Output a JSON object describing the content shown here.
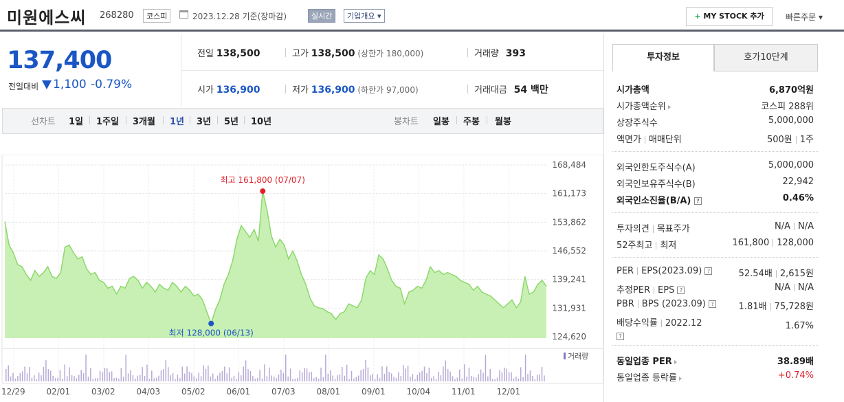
{
  "header": {
    "title": "미원에스씨",
    "code": "268280",
    "market": "코스피",
    "date": "2023.12.28  기준(장마감)",
    "realtime": "실시간",
    "overview": "기업개요 ▾",
    "mystock": "MY STOCK 추가",
    "fast_order": "빠른주문 ▾"
  },
  "price": {
    "current": "137,400",
    "diff_label": "전일대비",
    "diff_value": "1,100",
    "diff_pct": "-0.79%"
  },
  "quote": {
    "prev_label": "전일",
    "prev": "138,500",
    "high_label": "고가",
    "high": "138,500",
    "high_limit": "(상한가 180,000)",
    "volume_label": "거래량",
    "volume": "393",
    "open_label": "시가",
    "open": "136,900",
    "low_label": "저가",
    "low": "136,900",
    "low_limit": "(하한가 97,000)",
    "amount_label": "거래대금",
    "amount": "54 백만"
  },
  "tabs": {
    "line_label": "선차트",
    "periods": [
      "1일",
      "1주일",
      "3개월",
      "1년",
      "3년",
      "5년",
      "10년"
    ],
    "selected": "1년",
    "candle_label": "봉차트",
    "candles": [
      "일봉",
      "주봉",
      "월봉"
    ]
  },
  "chart_data": {
    "type": "area",
    "x_ticks": [
      "12/29",
      "02/01",
      "03/02",
      "04/03",
      "05/02",
      "06/01",
      "07/03",
      "08/01",
      "09/01",
      "10/04",
      "11/01",
      "12/01"
    ],
    "y_ticks": [
      "168,484",
      "161,173",
      "153,862",
      "146,552",
      "139,241",
      "131,931",
      "124,620"
    ],
    "ylim": [
      124620,
      168484
    ],
    "high_label": "최고 161,800 (07/07)",
    "low_label": "최저 128,000 (06/13)",
    "volume_label": "거래량",
    "series": [
      {
        "values": [
          154000,
          148000,
          146000,
          143000,
          142500,
          140500,
          139000,
          141500,
          140000,
          141000,
          142500,
          140000,
          139500,
          141000,
          147500,
          148000,
          146000,
          144500,
          145000,
          142000,
          140500,
          141000,
          139000,
          138500,
          137000,
          137500,
          135500,
          137500,
          137000,
          139500,
          140000,
          139000,
          137000,
          138500,
          137500,
          136000,
          138000,
          137000,
          136500,
          138500,
          137500,
          136000,
          137500,
          136500,
          135000,
          135500,
          134000,
          131000,
          128000,
          131500,
          134000,
          138000,
          140500,
          144000,
          149500,
          153000,
          151500,
          150000,
          152000,
          149000,
          161800,
          157000,
          150500,
          147500,
          149500,
          148000,
          144500,
          146500,
          144000,
          140500,
          138000,
          134500,
          132500,
          132000,
          131800,
          131000,
          130500,
          129000,
          130500,
          131000,
          133000,
          132500,
          132000,
          134000,
          139500,
          141500,
          140500,
          145500,
          144500,
          142000,
          139000,
          137500,
          137000,
          133000,
          136000,
          136500,
          137500,
          137000,
          139000,
          142500,
          141000,
          141500,
          140500,
          141000,
          140500,
          140000,
          139000,
          138500,
          138000,
          136500,
          137500,
          136000,
          135500,
          135000,
          134000,
          133000,
          132000,
          133000,
          134000,
          132000,
          133500,
          140000,
          135500,
          136000,
          138000,
          139000,
          137500
        ]
      }
    ]
  },
  "investment": {
    "tab1": "투자정보",
    "tab2": "호가10단계",
    "rows1": [
      {
        "k": "시가총액",
        "v": "6,870억원"
      },
      {
        "k": "시가총액순위",
        "v": "코스피 288위"
      },
      {
        "k": "상장주식수",
        "v": "5,000,000"
      },
      {
        "k": "액면가",
        "k2": "매매단위",
        "v": "500원",
        "v2": "1주"
      }
    ],
    "rows2": [
      {
        "k": "외국인한도주식수(A)",
        "v": "5,000,000"
      },
      {
        "k": "외국인보유주식수(B)",
        "v": "22,942"
      },
      {
        "k": "외국인소진율(B/A)",
        "v": "0.46%"
      }
    ],
    "rows3": [
      {
        "k": "투자의견",
        "k2": "목표주가",
        "v": "N/A",
        "v2": "N/A"
      },
      {
        "k": "52주최고",
        "k2": "최저",
        "v": "161,800",
        "v2": "128,000"
      }
    ],
    "rows4": [
      {
        "k": "PER",
        "k2": "EPS(2023.09)",
        "v": "52.54배",
        "v2": "2,615원"
      },
      {
        "k": "추정PER",
        "k2": "EPS",
        "v": "N/A",
        "v2": "N/A"
      },
      {
        "k": "PBR",
        "k2": "BPS (2023.09)",
        "v": "1.81배",
        "v2": "75,728원"
      },
      {
        "k": "배당수익률",
        "k2": "2022.12",
        "v": "1.67%"
      }
    ],
    "rows5": [
      {
        "k": "동일업종 PER",
        "v": "38.89배"
      },
      {
        "k": "동일업종 등락률",
        "v": "+0.74%"
      }
    ]
  },
  "colors": {
    "price_down": "#1a56c4",
    "up": "#e0202a",
    "chart_fill": "#c9f0b4",
    "chart_line": "#8bd86a"
  }
}
